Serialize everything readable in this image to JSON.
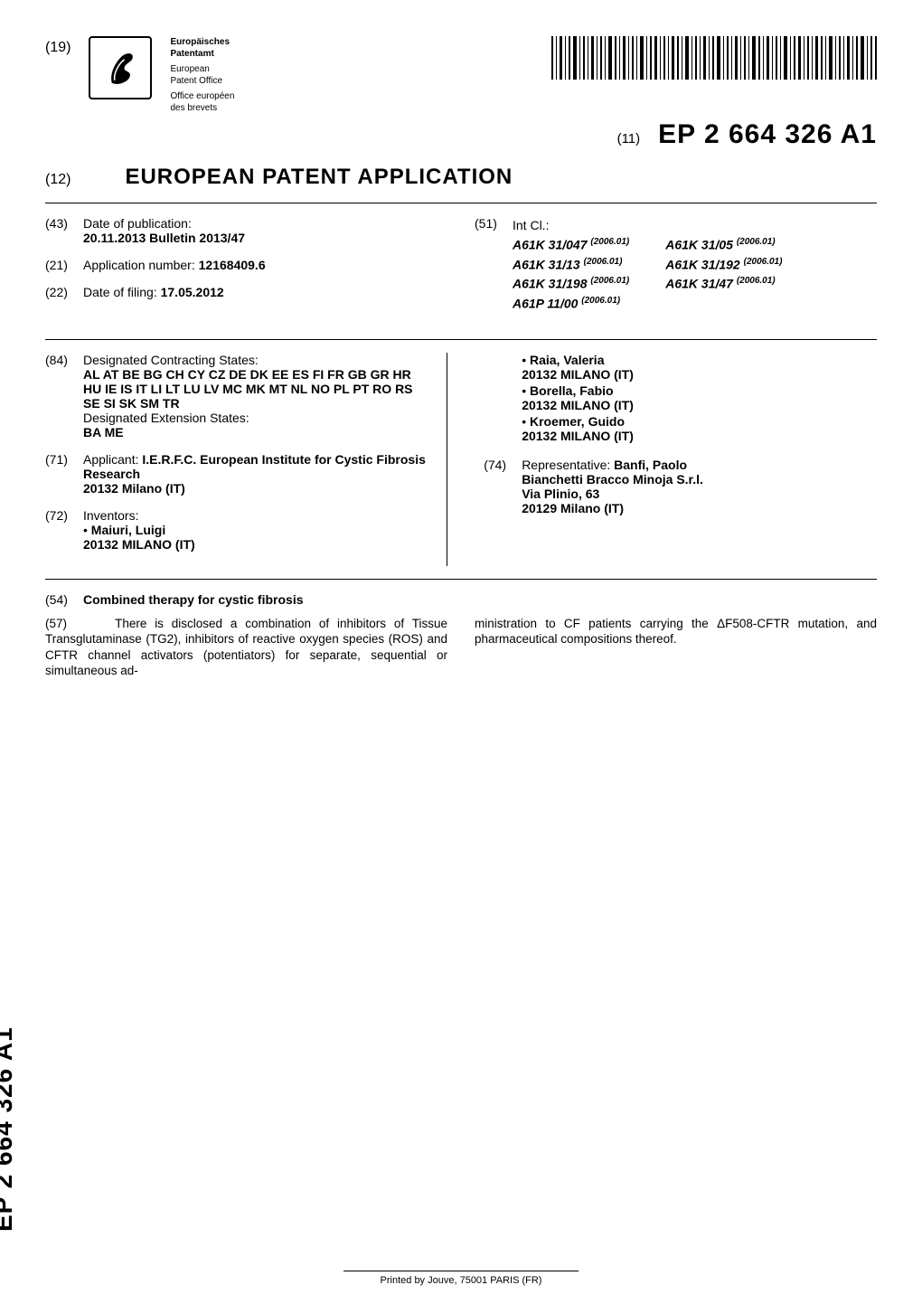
{
  "header": {
    "num19": "(19)",
    "office": {
      "line1a": "Europäisches",
      "line1b": "Patentamt",
      "line2a": "European",
      "line2b": "Patent Office",
      "line3a": "Office européen",
      "line3b": "des brevets"
    },
    "eleven": "(11)",
    "pubnum": "EP 2 664 326 A1"
  },
  "title_row": {
    "num12": "(12)",
    "title": "EUROPEAN PATENT APPLICATION"
  },
  "left_top": {
    "i43_tag": "(43)",
    "i43_a": "Date of publication:",
    "i43_b": "20.11.2013  Bulletin 2013/47",
    "i21_tag": "(21)",
    "i21_a": "Application number:",
    "i21_b": "12168409.6",
    "i22_tag": "(22)",
    "i22_a": "Date of filing:",
    "i22_b": "17.05.2012"
  },
  "right_top": {
    "i51_tag": "(51)",
    "i51_label": "Int Cl.:",
    "classes_left": [
      {
        "cl": "A61K 31/047",
        "yr": "(2006.01)"
      },
      {
        "cl": "A61K 31/13",
        "yr": "(2006.01)"
      },
      {
        "cl": "A61K 31/198",
        "yr": "(2006.01)"
      },
      {
        "cl": "A61P 11/00",
        "yr": "(2006.01)"
      }
    ],
    "classes_right": [
      {
        "cl": "A61K 31/05",
        "yr": "(2006.01)"
      },
      {
        "cl": "A61K 31/192",
        "yr": "(2006.01)"
      },
      {
        "cl": "A61K 31/47",
        "yr": "(2006.01)"
      }
    ]
  },
  "left_main": {
    "i84_tag": "(84)",
    "i84_a": "Designated Contracting States:",
    "i84_b": "AL AT BE BG CH CY CZ DE DK EE ES FI FR GB GR HR HU IE IS IT LI LT LU LV MC MK MT NL NO PL PT RO RS SE SI SK SM TR",
    "i84_c": "Designated Extension States:",
    "i84_d": "BA ME",
    "i71_tag": "(71)",
    "i71_a": "Applicant:",
    "i71_b": "I.E.R.F.C. European Institute for Cystic Fibrosis",
    "i71_c": "Research",
    "i71_d": "20132 Milano (IT)",
    "i72_tag": "(72)",
    "i72_a": "Inventors:",
    "i72_list": [
      {
        "name": "Maiuri, Luigi",
        "addr": "20132 MILANO (IT)"
      }
    ]
  },
  "right_main": {
    "inv_cont": [
      {
        "name": "Raia, Valeria",
        "addr": "20132 MILANO (IT)"
      },
      {
        "name": "Borella, Fabio",
        "addr": "20132 MILANO (IT)"
      },
      {
        "name": "Kroemer, Guido",
        "addr": "20132 MILANO (IT)"
      }
    ],
    "i74_tag": "(74)",
    "i74_a": "Representative:",
    "i74_b": "Banfi, Paolo",
    "i74_c": "Bianchetti Bracco Minoja S.r.l.",
    "i74_d": "Via Plinio, 63",
    "i74_e": "20129 Milano (IT)"
  },
  "abstract": {
    "i54_tag": "(54)",
    "i54_title": "Combined therapy for cystic fibrosis",
    "i57_tag": "(57)",
    "col1": "There is disclosed a combination of inhibitors of Tissue Transglutaminase (TG2), inhibitors of reactive oxygen species (ROS) and CFTR channel activators (potentiators) for separate, sequential or simultaneous ad-",
    "col2": "ministration to CF patients carrying the  ΔF508-CFTR mutation, and pharmaceutical compositions thereof."
  },
  "spine": "EP 2 664 326 A1",
  "footer": "Printed by Jouve, 75001 PARIS (FR)"
}
